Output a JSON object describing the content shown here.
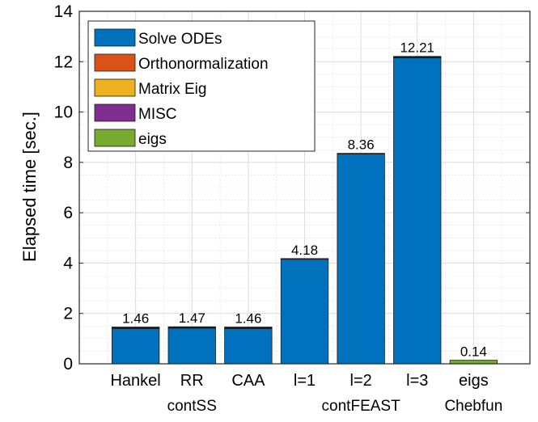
{
  "chart_data": {
    "type": "bar",
    "stacked": true,
    "categories": [
      "Hankel",
      "RR",
      "CAA",
      "l=1",
      "l=2",
      "l=3",
      "eigs"
    ],
    "group_labels": [
      {
        "label": "contSS",
        "from": 0,
        "to": 2
      },
      {
        "label": "contFEAST",
        "from": 3,
        "to": 5
      },
      {
        "label": "Chebfun",
        "from": 6,
        "to": 6
      }
    ],
    "series": [
      {
        "name": "Solve ODEs",
        "color": "#0072BD",
        "values": [
          1.4,
          1.41,
          1.4,
          4.15,
          8.33,
          12.15,
          0.0
        ]
      },
      {
        "name": "Orthonormalization",
        "color": "#D95319",
        "values": [
          0.02,
          0.02,
          0.02,
          0.0,
          0.0,
          0.02,
          0.0
        ]
      },
      {
        "name": "Matrix Eig",
        "color": "#EDB120",
        "values": [
          0.02,
          0.02,
          0.02,
          0.0,
          0.0,
          0.02,
          0.0
        ]
      },
      {
        "name": "MISC",
        "color": "#7E2F8E",
        "values": [
          0.02,
          0.02,
          0.02,
          0.03,
          0.03,
          0.02,
          0.0
        ]
      },
      {
        "name": "eigs",
        "color": "#77AC30",
        "values": [
          0.0,
          0.0,
          0.0,
          0.0,
          0.0,
          0.0,
          0.14
        ]
      }
    ],
    "totals": [
      1.46,
      1.47,
      1.46,
      4.18,
      8.36,
      12.21,
      0.14
    ],
    "total_labels": [
      "1.46",
      "1.47",
      "1.46",
      "4.18",
      "8.36",
      "12.21",
      "0.14"
    ],
    "ylabel": "Elapsed time [sec.]",
    "ylim": [
      0,
      14
    ],
    "yticks": [
      0,
      2,
      4,
      6,
      8,
      10,
      12,
      14
    ],
    "grid": true,
    "minor_grid": true,
    "legend_position": "top-left"
  }
}
